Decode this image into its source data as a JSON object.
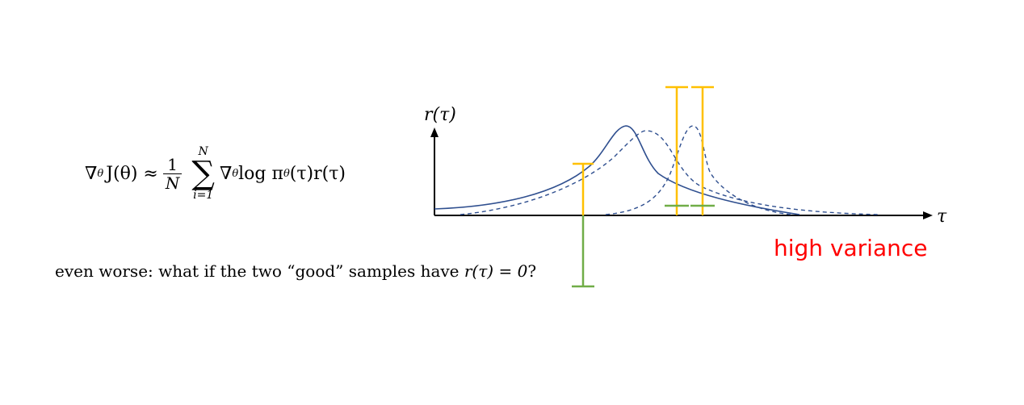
{
  "formula": {
    "lhs": "∇",
    "lhs_sub": "θ",
    "lhs_rest": "J(θ) ≈",
    "frac_num": "1",
    "frac_den": "N",
    "sum_top": "N",
    "sum_bot": "i=1",
    "rhs_nabla": "∇",
    "rhs_sub": "θ",
    "rhs_log": " log π",
    "rhs_pi_sub": "θ",
    "rhs_rest": "(τ)r(τ)"
  },
  "caption": {
    "pre": "even worse: what if the two “good” samples have ",
    "expr": "r(τ) = 0",
    "post": "?"
  },
  "highlight": "high variance",
  "plot": {
    "y_axis_label": "r(τ)",
    "x_axis_label": "τ",
    "colors": {
      "curve": "#2f4f8f",
      "sample_bar_yellow": "#ffc000",
      "sample_bar_green": "#70ad47",
      "axis": "#000000"
    },
    "curves": [
      "solid-distribution",
      "dashed-distribution-1",
      "dashed-distribution-2"
    ],
    "sample_bars": [
      {
        "color": "yellow",
        "kind": "negative-sample-upper"
      },
      {
        "color": "green",
        "kind": "negative-sample-lower"
      },
      {
        "color": "yellow",
        "kind": "good-sample-1"
      },
      {
        "color": "green",
        "kind": "good-sample-1-zero"
      },
      {
        "color": "yellow",
        "kind": "good-sample-2"
      },
      {
        "color": "green",
        "kind": "good-sample-2-zero"
      }
    ]
  }
}
